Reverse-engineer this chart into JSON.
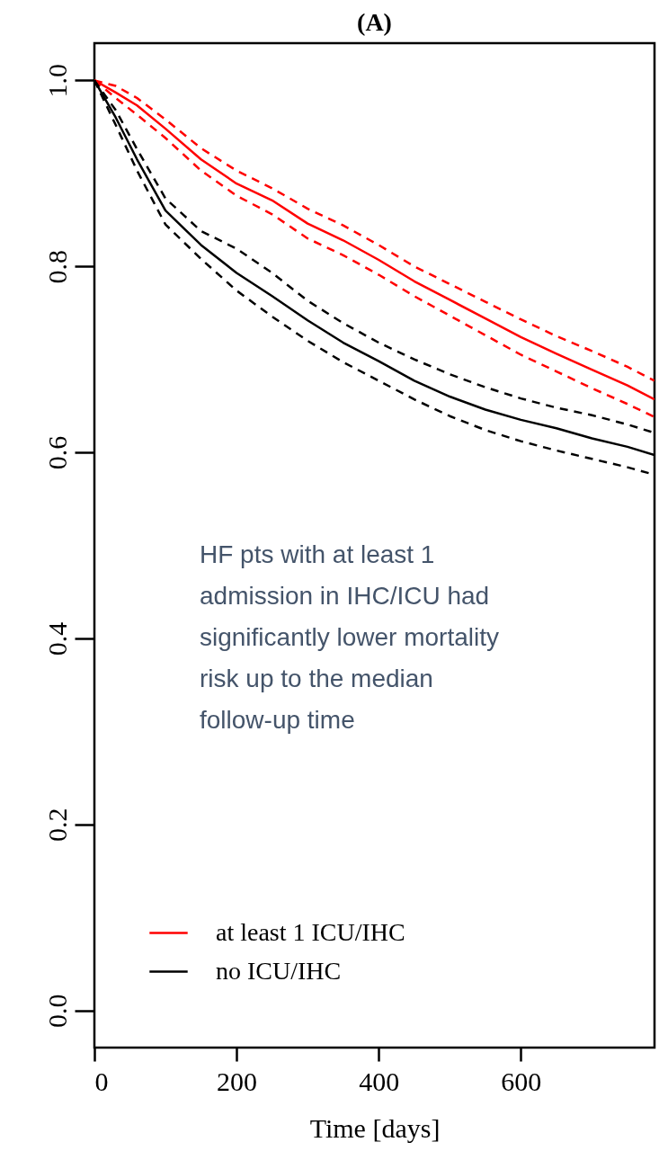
{
  "chart_data": {
    "type": "line",
    "title": "(A)",
    "xlabel": "Time [days]",
    "x": [
      0,
      30,
      60,
      100,
      150,
      200,
      250,
      300,
      350,
      400,
      450,
      500,
      550,
      600,
      650,
      700,
      750,
      788
    ],
    "series": [
      {
        "name": "at least 1 ICU/IHC",
        "color": "#ff0000",
        "line_style": "solid",
        "values": [
          1.0,
          0.987,
          0.973,
          0.948,
          0.915,
          0.889,
          0.871,
          0.846,
          0.828,
          0.807,
          0.784,
          0.764,
          0.744,
          0.724,
          0.706,
          0.689,
          0.672,
          0.657
        ]
      },
      {
        "color": "#ff0000",
        "line_style": "dashed",
        "values": [
          1.0,
          0.994,
          0.981,
          0.958,
          0.927,
          0.903,
          0.884,
          0.862,
          0.844,
          0.823,
          0.8,
          0.781,
          0.762,
          0.743,
          0.725,
          0.709,
          0.692,
          0.677
        ]
      },
      {
        "color": "#ff0000",
        "line_style": "dashed",
        "values": [
          1.0,
          0.981,
          0.963,
          0.938,
          0.903,
          0.876,
          0.856,
          0.83,
          0.812,
          0.791,
          0.768,
          0.747,
          0.726,
          0.705,
          0.687,
          0.669,
          0.652,
          0.638
        ]
      },
      {
        "name": "no ICU/IHC",
        "color": "#000000",
        "line_style": "solid",
        "values": [
          1.0,
          0.96,
          0.915,
          0.86,
          0.823,
          0.793,
          0.768,
          0.742,
          0.718,
          0.698,
          0.677,
          0.66,
          0.646,
          0.635,
          0.626,
          0.615,
          0.606,
          0.597
        ]
      },
      {
        "color": "#000000",
        "line_style": "dashed",
        "values": [
          1.0,
          0.968,
          0.926,
          0.873,
          0.838,
          0.819,
          0.793,
          0.763,
          0.739,
          0.718,
          0.7,
          0.684,
          0.67,
          0.658,
          0.648,
          0.64,
          0.63,
          0.621
        ]
      },
      {
        "color": "#000000",
        "line_style": "dashed",
        "values": [
          1.0,
          0.952,
          0.903,
          0.845,
          0.808,
          0.774,
          0.746,
          0.72,
          0.697,
          0.677,
          0.657,
          0.639,
          0.624,
          0.612,
          0.602,
          0.593,
          0.584,
          0.576
        ]
      }
    ],
    "xlim": [
      0,
      788
    ],
    "xticks": [
      0,
      200,
      400,
      600
    ],
    "ylim": [
      -0.04,
      1.04
    ],
    "yticks": [
      {
        "value": 0,
        "label": "0.0"
      },
      {
        "value": 0.2,
        "label": "0.2"
      },
      {
        "value": 0.4,
        "label": "0.4"
      },
      {
        "value": 0.6,
        "label": "0.6"
      },
      {
        "value": 0.8,
        "label": "0.8"
      },
      {
        "value": 1,
        "label": "1.0"
      }
    ],
    "legend": "bottom",
    "grid": false,
    "annotations": [
      "HF pts with at least 1 admission in IHC/ICU had significantly lower mortality risk up to the median follow-up time"
    ]
  }
}
